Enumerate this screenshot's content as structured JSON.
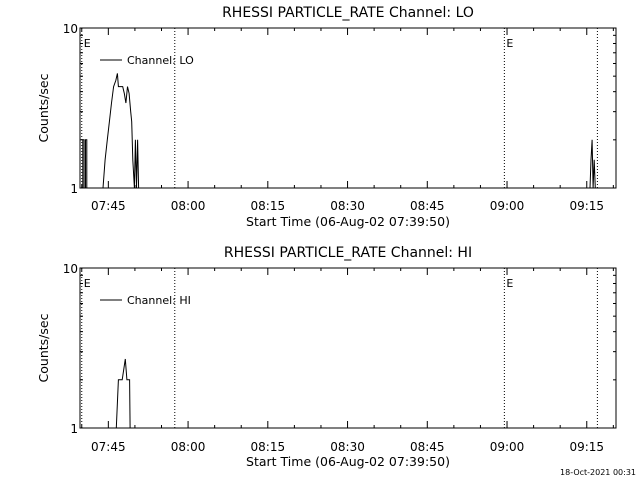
{
  "footer": "18-Oct-2021 00:31",
  "chart_data": [
    {
      "type": "line",
      "title": "RHESSI PARTICLE_RATE Channel: LO",
      "xlabel": "Start Time (06-Aug-02 07:39:50)",
      "ylabel": "Counts/sec",
      "yscale": "log",
      "ylim": [
        1,
        10
      ],
      "yticks": [
        {
          "value": 1,
          "label": "1"
        },
        {
          "value": 10,
          "label": "10"
        }
      ],
      "xlim_min": [
        -0.33,
        100.5
      ],
      "xticks": [
        {
          "value": 5,
          "label": "07:45"
        },
        {
          "value": 20,
          "label": "08:00"
        },
        {
          "value": 35,
          "label": "08:15"
        },
        {
          "value": 50,
          "label": "08:30"
        },
        {
          "value": 65,
          "label": "08:45"
        },
        {
          "value": 80,
          "label": "09:00"
        },
        {
          "value": 95,
          "label": "09:15"
        }
      ],
      "markers": [
        {
          "x": 0.0,
          "label": "E"
        },
        {
          "x": 17.5,
          "label": ""
        },
        {
          "x": 79.5,
          "label": "E"
        },
        {
          "x": 97.0,
          "label": ""
        }
      ],
      "legend": {
        "position": "top-left",
        "entries": [
          "Channel: LO"
        ]
      },
      "series": [
        {
          "name": "Channel: LO",
          "segments": [
            [
              [
                0.2,
                1
              ],
              [
                0.2,
                2
              ],
              [
                0.45,
                2
              ],
              [
                0.45,
                1
              ],
              [
                0.7,
                1
              ],
              [
                0.7,
                2
              ],
              [
                0.95,
                2
              ],
              [
                0.95,
                1
              ]
            ],
            [
              [
                4.0,
                1
              ],
              [
                4.4,
                1.5
              ],
              [
                4.8,
                2
              ],
              [
                5.2,
                2.6
              ],
              [
                5.6,
                3.4
              ],
              [
                6.0,
                4.3
              ],
              [
                6.4,
                4.7
              ],
              [
                6.7,
                5.2
              ],
              [
                6.9,
                4.3
              ],
              [
                7.3,
                4.3
              ],
              [
                7.7,
                4.3
              ],
              [
                8.0,
                3.9
              ],
              [
                8.3,
                3.4
              ],
              [
                8.6,
                4.3
              ],
              [
                8.9,
                3.9
              ],
              [
                9.2,
                3.0
              ],
              [
                9.4,
                2.6
              ],
              [
                9.6,
                1.5
              ],
              [
                9.9,
                1
              ],
              [
                10.1,
                2.0
              ],
              [
                10.3,
                1
              ],
              [
                10.5,
                2.0
              ],
              [
                10.7,
                1
              ]
            ],
            [
              [
                95.6,
                1
              ],
              [
                95.8,
                1.5
              ],
              [
                96.0,
                2.0
              ],
              [
                96.2,
                1
              ],
              [
                96.4,
                1.5
              ],
              [
                96.6,
                1
              ]
            ]
          ]
        }
      ]
    },
    {
      "type": "line",
      "title": "RHESSI PARTICLE_RATE Channel: HI",
      "xlabel": "Start Time (06-Aug-02 07:39:50)",
      "ylabel": "Counts/sec",
      "yscale": "log",
      "ylim": [
        1,
        10
      ],
      "yticks": [
        {
          "value": 1,
          "label": "1"
        },
        {
          "value": 10,
          "label": "10"
        }
      ],
      "xlim_min": [
        -0.33,
        100.5
      ],
      "xticks": [
        {
          "value": 5,
          "label": "07:45"
        },
        {
          "value": 20,
          "label": "08:00"
        },
        {
          "value": 35,
          "label": "08:15"
        },
        {
          "value": 50,
          "label": "08:30"
        },
        {
          "value": 65,
          "label": "08:45"
        },
        {
          "value": 80,
          "label": "09:00"
        },
        {
          "value": 95,
          "label": "09:15"
        }
      ],
      "markers": [
        {
          "x": 0.0,
          "label": "E"
        },
        {
          "x": 17.5,
          "label": ""
        },
        {
          "x": 79.5,
          "label": "E"
        },
        {
          "x": 97.0,
          "label": ""
        }
      ],
      "legend": {
        "position": "top-left",
        "entries": [
          "Channel: HI"
        ]
      },
      "series": [
        {
          "name": "Channel: HI",
          "segments": [
            [
              [
                6.5,
                1
              ],
              [
                6.9,
                2
              ],
              [
                7.6,
                2
              ],
              [
                8.2,
                2.7
              ],
              [
                8.5,
                2
              ],
              [
                9.0,
                2
              ],
              [
                9.1,
                1
              ]
            ]
          ]
        }
      ]
    }
  ]
}
